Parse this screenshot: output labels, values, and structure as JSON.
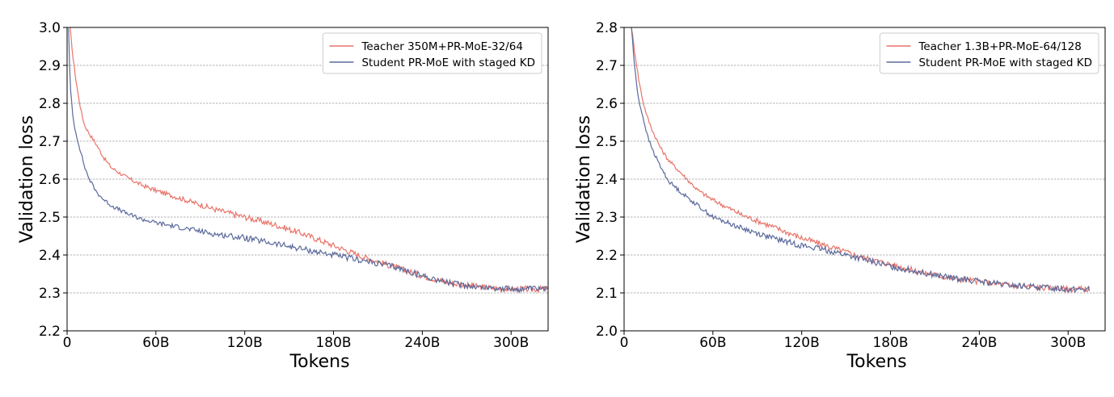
{
  "chart_data": [
    {
      "type": "line",
      "xlabel": "Tokens",
      "ylabel": "Validation loss",
      "xlim": [
        0,
        325
      ],
      "ylim": [
        2.2,
        3.0
      ],
      "x_ticks": [
        0,
        60,
        120,
        180,
        240,
        300
      ],
      "x_tick_labels": [
        "0",
        "60B",
        "120B",
        "180B",
        "240B",
        "300B"
      ],
      "y_ticks": [
        2.2,
        2.3,
        2.4,
        2.5,
        2.6,
        2.7,
        2.8,
        2.9,
        3.0
      ],
      "y_tick_labels": [
        "2.2",
        "2.3",
        "2.4",
        "2.5",
        "2.6",
        "2.7",
        "2.8",
        "2.9",
        "3.0"
      ],
      "grid": "horizontal-dashed",
      "legend_position": "top-right",
      "series": [
        {
          "name": "Teacher 350M+PR-MoE-32/64",
          "color": "#e8756a",
          "x": [
            2,
            4,
            6,
            8,
            10,
            12,
            15,
            20,
            25,
            30,
            40,
            50,
            60,
            80,
            100,
            120,
            140,
            160,
            180,
            200,
            220,
            240,
            260,
            280,
            300,
            325
          ],
          "y": [
            3.0,
            2.92,
            2.86,
            2.81,
            2.77,
            2.74,
            2.72,
            2.69,
            2.655,
            2.63,
            2.605,
            2.585,
            2.57,
            2.545,
            2.52,
            2.5,
            2.48,
            2.455,
            2.425,
            2.395,
            2.37,
            2.345,
            2.325,
            2.315,
            2.31,
            2.31
          ]
        },
        {
          "name": "Student PR-MoE with staged KD",
          "color": "#5b6a9c",
          "x": [
            1,
            2,
            4,
            6,
            8,
            10,
            12,
            15,
            20,
            25,
            30,
            40,
            50,
            60,
            80,
            100,
            120,
            140,
            160,
            180,
            200,
            220,
            240,
            260,
            280,
            300,
            325
          ],
          "y": [
            3.0,
            2.85,
            2.76,
            2.72,
            2.69,
            2.66,
            2.63,
            2.6,
            2.565,
            2.545,
            2.53,
            2.51,
            2.495,
            2.485,
            2.47,
            2.455,
            2.445,
            2.43,
            2.415,
            2.4,
            2.385,
            2.37,
            2.345,
            2.325,
            2.315,
            2.31,
            2.31
          ]
        }
      ]
    },
    {
      "type": "line",
      "xlabel": "Tokens",
      "ylabel": "Validation loss",
      "xlim": [
        0,
        325
      ],
      "ylim": [
        2.0,
        2.8
      ],
      "x_ticks": [
        0,
        60,
        120,
        180,
        240,
        300
      ],
      "x_tick_labels": [
        "0",
        "60B",
        "120B",
        "180B",
        "240B",
        "300B"
      ],
      "y_ticks": [
        2.0,
        2.1,
        2.2,
        2.3,
        2.4,
        2.5,
        2.6,
        2.7,
        2.8
      ],
      "y_tick_labels": [
        "2.0",
        "2.1",
        "2.2",
        "2.3",
        "2.4",
        "2.5",
        "2.6",
        "2.7",
        "2.8"
      ],
      "grid": "horizontal-dashed",
      "legend_position": "top-right",
      "series": [
        {
          "name": "Teacher 1.3B+PR-MoE-64/128",
          "color": "#e8756a",
          "x": [
            5,
            7,
            10,
            13,
            16,
            20,
            25,
            30,
            40,
            50,
            60,
            70,
            80,
            100,
            120,
            140,
            160,
            180,
            200,
            220,
            240,
            260,
            280,
            300,
            315
          ],
          "y": [
            2.8,
            2.74,
            2.66,
            2.6,
            2.56,
            2.52,
            2.48,
            2.45,
            2.41,
            2.37,
            2.345,
            2.325,
            2.305,
            2.275,
            2.245,
            2.22,
            2.195,
            2.175,
            2.155,
            2.14,
            2.13,
            2.12,
            2.115,
            2.11,
            2.11
          ]
        },
        {
          "name": "Student PR-MoE with staged KD",
          "color": "#5b6a9c",
          "x": [
            5,
            7,
            9,
            11,
            13,
            16,
            20,
            25,
            30,
            40,
            50,
            60,
            70,
            80,
            100,
            120,
            140,
            160,
            180,
            200,
            220,
            240,
            260,
            280,
            300,
            315
          ],
          "y": [
            2.8,
            2.7,
            2.63,
            2.59,
            2.56,
            2.51,
            2.47,
            2.43,
            2.395,
            2.36,
            2.33,
            2.3,
            2.285,
            2.27,
            2.245,
            2.225,
            2.21,
            2.19,
            2.17,
            2.155,
            2.14,
            2.13,
            2.12,
            2.115,
            2.11,
            2.11
          ]
        }
      ]
    }
  ]
}
